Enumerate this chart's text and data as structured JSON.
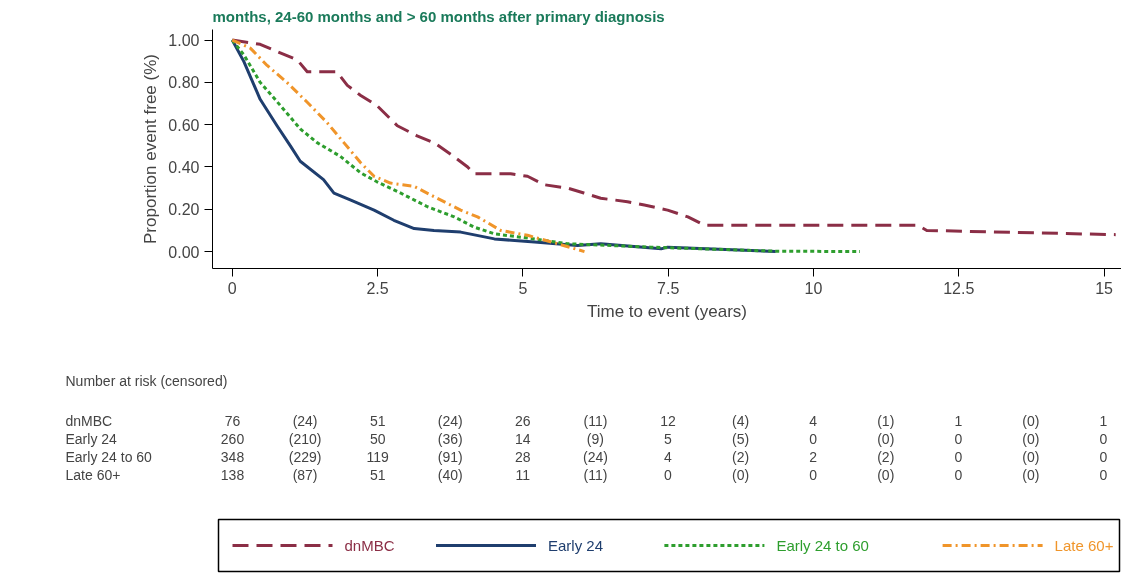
{
  "chart_data": [
    {
      "type": "line",
      "title": "months, 24-60 months and > 60 months after primary diagnosis",
      "xlabel": "Time to event (years)",
      "ylabel": "Proportion event free (%)",
      "xlim": [
        -0.34,
        15.3
      ],
      "ylim": [
        -0.08,
        1.05
      ],
      "xticks": [
        0,
        2.5,
        5,
        7.5,
        10,
        12.5,
        15
      ],
      "yticks": [
        {
          "value": 0,
          "label": "0.00"
        },
        {
          "value": 0.2,
          "label": "0.20"
        },
        {
          "value": 0.4,
          "label": "0.40"
        },
        {
          "value": 0.6,
          "label": "0.60"
        },
        {
          "value": 0.8,
          "label": "0.80"
        },
        {
          "value": 1,
          "label": "1.00"
        }
      ],
      "grid": false,
      "legend": "bottom",
      "series": [
        {
          "name": "dnMBC",
          "color": "#8b2e46",
          "line_style": "dashed",
          "x": [
            0,
            0.48,
            0.77,
            1.12,
            1.29,
            1.8,
            1.98,
            2.21,
            2.49,
            2.84,
            3.18,
            3.47,
            3.76,
            4.05,
            4.16,
            4.79,
            5.08,
            5.37,
            5.77,
            6.05,
            6.34,
            6.8,
            7.09,
            7.49,
            7.84,
            8.13,
            11.8,
            11.95,
            15.2
          ],
          "values": [
            1,
            0.98,
            0.946,
            0.906,
            0.85,
            0.85,
            0.786,
            0.738,
            0.69,
            0.595,
            0.547,
            0.515,
            0.46,
            0.4,
            0.368,
            0.368,
            0.356,
            0.316,
            0.3,
            0.277,
            0.252,
            0.236,
            0.22,
            0.196,
            0.164,
            0.124,
            0.124,
            0.1,
            0.08
          ]
        },
        {
          "name": "Early 24",
          "color": "#1f3e6e",
          "line_style": "solid",
          "x": [
            0,
            0.2,
            0.48,
            0.77,
            1.0,
            1.17,
            1.57,
            1.75,
            2.03,
            2.44,
            2.78,
            3.13,
            3.47,
            3.93,
            4.51,
            5.2,
            5.94,
            6.34,
            7.38,
            7.49,
            9.35
          ],
          "values": [
            1,
            0.898,
            0.72,
            0.595,
            0.5,
            0.427,
            0.34,
            0.276,
            0.244,
            0.196,
            0.148,
            0.109,
            0.1,
            0.092,
            0.06,
            0.045,
            0.029,
            0.037,
            0.013,
            0.021,
            0.0
          ]
        },
        {
          "name": "Early 24 to 60",
          "color": "#2e9e2e",
          "line_style": "dotted",
          "x": [
            0,
            0.2,
            0.48,
            0.83,
            1.17,
            1.46,
            1.86,
            2.21,
            2.49,
            2.9,
            3.36,
            3.82,
            4.16,
            4.51,
            5.2,
            5.77,
            7.2,
            9.33,
            10.8
          ],
          "values": [
            1,
            0.93,
            0.8,
            0.69,
            0.58,
            0.515,
            0.45,
            0.372,
            0.33,
            0.276,
            0.212,
            0.164,
            0.116,
            0.084,
            0.06,
            0.037,
            0.021,
            0.002,
            0.0
          ]
        },
        {
          "name": "Late 60+",
          "color": "#f0952a",
          "line_style": "dashdot",
          "x": [
            0,
            0.31,
            0.6,
            0.94,
            1.29,
            1.63,
            1.92,
            2.21,
            2.44,
            2.72,
            3.13,
            3.47,
            3.93,
            4.22,
            4.62,
            5.08,
            5.6,
            6.06
          ],
          "values": [
            1,
            0.962,
            0.88,
            0.8,
            0.706,
            0.61,
            0.515,
            0.42,
            0.356,
            0.324,
            0.308,
            0.26,
            0.196,
            0.164,
            0.1,
            0.077,
            0.037,
            0.0
          ]
        }
      ]
    },
    {
      "type": "other",
      "title": "Number at risk (censored)",
      "y_categories": [
        "dnMBC",
        "Early 24",
        "Early 24 to 60",
        "Late 60+"
      ],
      "cell_labels": [
        [
          "76",
          "(24)",
          "51",
          "(24)",
          "26",
          "(11)",
          "12",
          "(4)",
          "4",
          "(1)",
          "1",
          "(0)",
          "1"
        ],
        [
          "260",
          "(210)",
          "50",
          "(36)",
          "14",
          "(9)",
          "5",
          "(5)",
          "0",
          "(0)",
          "0",
          "(0)",
          "0"
        ],
        [
          "348",
          "(229)",
          "119",
          "(91)",
          "28",
          "(24)",
          "4",
          "(2)",
          "2",
          "(2)",
          "0",
          "(0)",
          "0"
        ],
        [
          "138",
          "(87)",
          "51",
          "(40)",
          "11",
          "(11)",
          "0",
          "(0)",
          "0",
          "(0)",
          "0",
          "(0)",
          "0"
        ]
      ]
    }
  ]
}
